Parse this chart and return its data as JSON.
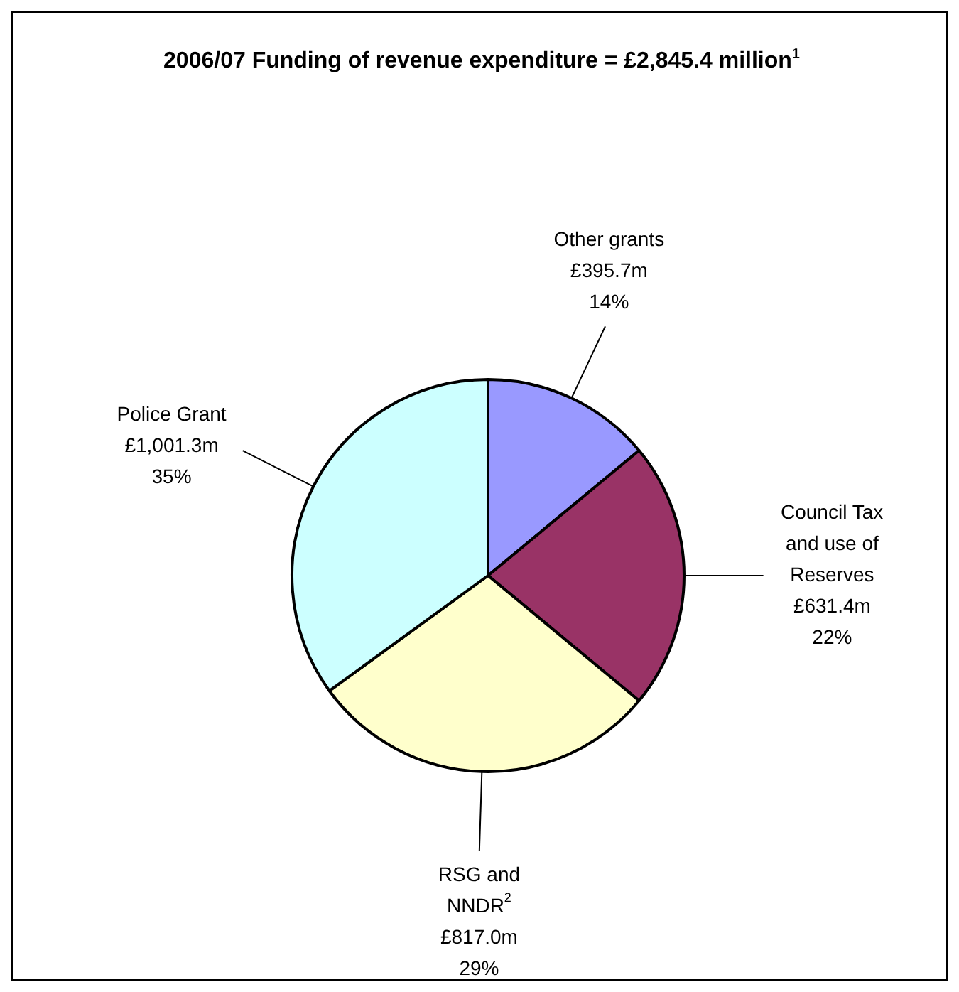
{
  "chart_data": {
    "type": "pie",
    "title": "2006/07 Funding of revenue expenditure = £2,845.4 million$^{1}$",
    "categories": [
      "Other grants",
      "Council Tax and use of Reserves",
      "RSG and NNDR$^{2}$",
      "Police Grant"
    ],
    "values": [
      14,
      22,
      29,
      35
    ],
    "colors": [
      "#9999ff",
      "#993366",
      "#ffffcc",
      "#ccffff"
    ],
    "value_labels": [
      "£395.7m\n14%",
      "£631.4m\n22%",
      "£817.0m\n29%",
      "£1,001.3m\n35%"
    ],
    "legend": false
  }
}
